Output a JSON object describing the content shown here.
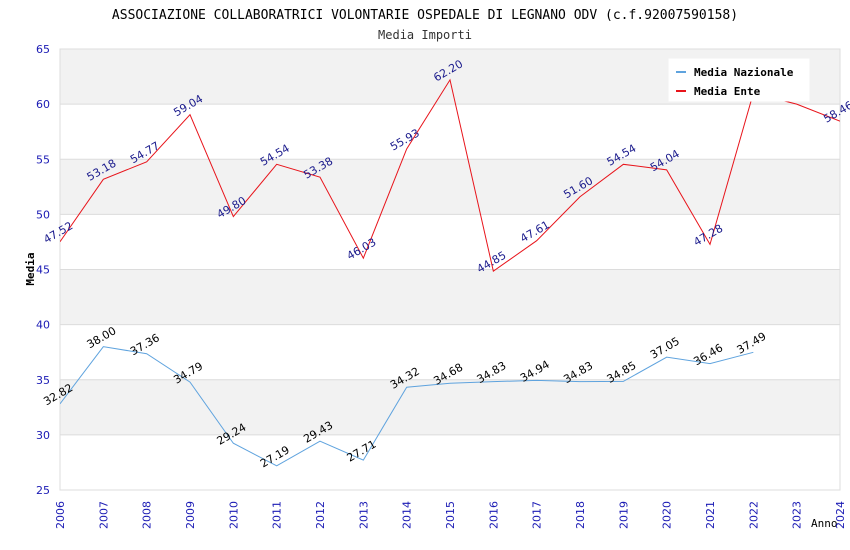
{
  "chart_data": {
    "type": "line",
    "title": "ASSOCIAZIONE COLLABORATRICI VOLONTARIE OSPEDALE DI LEGNANO ODV (c.f.92007590158)",
    "subtitle": "Media Importi",
    "xlabel": "Anno",
    "ylabel": "Media",
    "ylim": [
      25,
      65
    ],
    "yticks": [
      "25",
      "30",
      "35",
      "40",
      "45",
      "50",
      "55",
      "60",
      "65"
    ],
    "categories": [
      "2006",
      "2007",
      "2008",
      "2009",
      "2010",
      "2011",
      "2012",
      "2013",
      "2014",
      "2015",
      "2016",
      "2017",
      "2018",
      "2019",
      "2020",
      "2021",
      "2022",
      "2023",
      "2024"
    ],
    "legend_position": "top-right",
    "series": [
      {
        "name": "Media Nazionale",
        "color": "#5fa3de",
        "label_color": "#000000",
        "values": [
          32.82,
          38.0,
          37.36,
          34.79,
          29.24,
          27.19,
          29.43,
          27.71,
          34.32,
          34.68,
          34.83,
          34.94,
          34.83,
          34.85,
          37.05,
          36.46,
          37.49,
          null,
          null
        ],
        "labels": [
          "32.82",
          "38.00",
          "37.36",
          "34.79",
          "29.24",
          "27.19",
          "29.43",
          "27.71",
          "34.32",
          "34.68",
          "34.83",
          "34.94",
          "34.83",
          "34.85",
          "37.05",
          "36.46",
          "37.49",
          null,
          null
        ]
      },
      {
        "name": "Media Ente",
        "color": "#e8141b",
        "label_color": "#1a1a8c",
        "values": [
          47.52,
          53.18,
          54.77,
          59.04,
          49.8,
          54.54,
          53.38,
          46.03,
          55.93,
          62.2,
          44.85,
          47.61,
          51.6,
          54.54,
          54.04,
          47.28,
          61.0,
          60.0,
          58.46
        ],
        "labels": [
          "47.52",
          "53.18",
          "54.77",
          "59.04",
          "49.80",
          "54.54",
          "53.38",
          "46.03",
          "55.93",
          "62.20",
          "44.85",
          "47.61",
          "51.60",
          "54.54",
          "54.04",
          "47.28",
          null,
          null,
          "58.46"
        ]
      }
    ]
  }
}
